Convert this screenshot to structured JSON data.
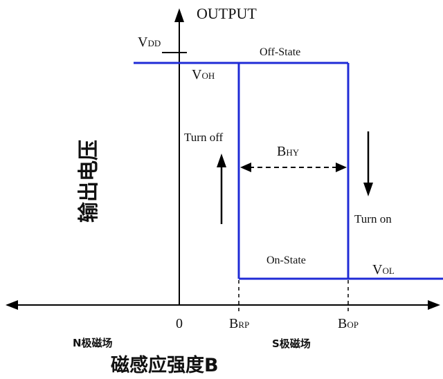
{
  "diagram": {
    "y_axis_title": "OUTPUT",
    "y_axis_label_vertical": "输出电压",
    "x_axis_title": "磁感应强度B",
    "origin_label": "0",
    "n_field_label": "N极磁场",
    "s_field_label": "S极磁场",
    "vdd": {
      "main": "V",
      "sub": "DD"
    },
    "voh": {
      "main": "V",
      "sub": "OH"
    },
    "vol": {
      "main": "V",
      "sub": "OL"
    },
    "brp": {
      "main": "B",
      "sub": "RP"
    },
    "bop": {
      "main": "B",
      "sub": "OP"
    },
    "bhy": {
      "main": "B",
      "sub": "HY"
    },
    "off_state": "Off-State",
    "on_state": "On-State",
    "turn_off": "Turn off",
    "turn_on": "Turn on",
    "colors": {
      "curve": "#1f2bd6",
      "axis": "#000000",
      "text": "#111111"
    }
  }
}
